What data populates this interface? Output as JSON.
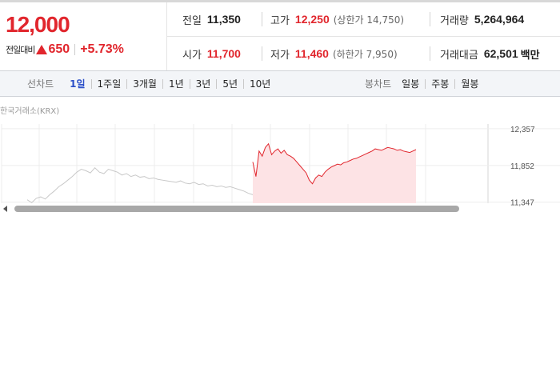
{
  "price": {
    "current": "12,000",
    "change_label": "전일대비",
    "change_value": "650",
    "change_rate": "+5.73%"
  },
  "stats": {
    "prev_close_label": "전일",
    "prev_close": "11,350",
    "high_label": "고가",
    "high": "12,250",
    "upper_limit": "(상한가 14,750)",
    "volume_label": "거래량",
    "volume": "5,264,964",
    "open_label": "시가",
    "open": "11,700",
    "low_label": "저가",
    "low": "11,460",
    "lower_limit": "(하한가 7,950)",
    "amount_label": "거래대금",
    "amount": "62,501",
    "amount_unit": "백만"
  },
  "line_tabs": {
    "title": "선차트",
    "items": [
      "1일",
      "1주일",
      "3개월",
      "1년",
      "3년",
      "5년",
      "10년"
    ],
    "active_index": 0
  },
  "candle_tabs": {
    "title": "봉차트",
    "items": [
      "일봉",
      "주봉",
      "월봉"
    ]
  },
  "chart": {
    "exchange_label": "한국거래소(KRX)",
    "y_ticks": [
      "12,357",
      "11,852",
      "11,347"
    ]
  },
  "colors": {
    "up": "#e1262d",
    "active_tab": "#2a4ec8",
    "fill_up": "#fde3e5",
    "prev_day_line": "#c8c8c8"
  },
  "chart_data": {
    "type": "line",
    "title": "",
    "xlabel": "",
    "ylabel": "",
    "ylim": [
      11300,
      12400
    ],
    "y_ticks": [
      12357,
      11852,
      11347
    ],
    "series": [
      {
        "values": [
          11380,
          11340,
          11400,
          11420,
          11390,
          11450,
          11500,
          11560,
          11600,
          11650,
          11700,
          11760,
          11800,
          11780,
          11750,
          11820,
          11760,
          11740,
          11800,
          11780,
          11760,
          11720,
          11740,
          11700,
          11720,
          11690,
          11700,
          11670,
          11680,
          11660,
          11650,
          11640,
          11630,
          11620,
          11640,
          11610,
          11600,
          11620,
          11590,
          11600,
          11570,
          11580,
          11560,
          11570,
          11550,
          11560,
          11540,
          11520,
          11500,
          11470,
          11450
        ]
      },
      {
        "values": [
          11900,
          11700,
          12050,
          11980,
          12100,
          12150,
          12000,
          12050,
          12080,
          12020,
          12060,
          12000,
          11980,
          11950,
          11900,
          11850,
          11800,
          11750,
          11650,
          11600,
          11680,
          11720,
          11700,
          11760,
          11800,
          11830,
          11850,
          11870,
          11860,
          11890,
          11900,
          11920,
          11940,
          11950,
          11970,
          11990,
          12010,
          12030,
          12050,
          12080,
          12070,
          12060,
          12080,
          12100,
          12090,
          12080,
          12060,
          12070,
          12050,
          12040,
          12030,
          12050,
          12070
        ]
      }
    ]
  }
}
